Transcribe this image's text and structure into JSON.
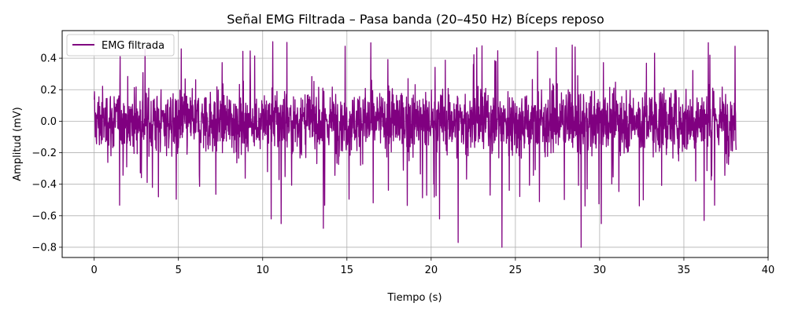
{
  "chart_data": {
    "type": "line",
    "title": "Señal EMG Filtrada – Pasa banda (20–450 Hz) Bíceps reposo",
    "xlabel": "Tiempo (s)",
    "ylabel": "Amplitud (mV)",
    "xlim": [
      -1.9,
      40
    ],
    "ylim": [
      -0.865,
      0.575
    ],
    "xticks": [
      0,
      5,
      10,
      15,
      20,
      25,
      30,
      35,
      40
    ],
    "xtick_labels": [
      "0",
      "5",
      "10",
      "15",
      "20",
      "25",
      "30",
      "35",
      "40"
    ],
    "yticks": [
      -0.8,
      -0.6,
      -0.4,
      -0.2,
      0.0,
      0.2,
      0.4
    ],
    "ytick_labels": [
      "−0.8",
      "−0.6",
      "−0.4",
      "−0.2",
      "0.0",
      "0.2",
      "0.4"
    ],
    "grid": true,
    "legend_position": "top-left",
    "series": [
      {
        "name": "EMG filtrada",
        "color": "#800080",
        "x_range": [
          0,
          38.1
        ],
        "typical_envelope": [
          -0.32,
          0.32
        ],
        "max": 0.51,
        "min": -0.8,
        "notable_negative_spikes": [
          {
            "x": 21.6,
            "y": -0.77
          },
          {
            "x": 24.2,
            "y": -0.8
          },
          {
            "x": 28.9,
            "y": -0.8
          },
          {
            "x": 13.6,
            "y": -0.68
          },
          {
            "x": 11.1,
            "y": -0.65
          },
          {
            "x": 30.1,
            "y": -0.65
          },
          {
            "x": 36.2,
            "y": -0.63
          },
          {
            "x": 10.5,
            "y": -0.62
          },
          {
            "x": 20.5,
            "y": -0.62
          }
        ]
      }
    ]
  }
}
